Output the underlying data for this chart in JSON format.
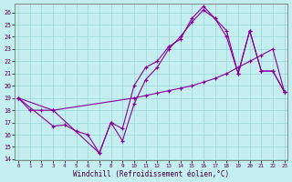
{
  "xlabel": "Windchill (Refroidissement éolien,°C)",
  "background_color": "#c5eef0",
  "grid_color": "#a0d8dc",
  "line_color": "#880099",
  "xlim_min": -0.3,
  "xlim_max": 23.3,
  "ylim_min": 13.9,
  "ylim_max": 26.7,
  "yticks": [
    14,
    15,
    16,
    17,
    18,
    19,
    20,
    21,
    22,
    23,
    24,
    25,
    26
  ],
  "xticks": [
    0,
    1,
    2,
    3,
    4,
    5,
    6,
    7,
    8,
    9,
    10,
    11,
    12,
    13,
    14,
    15,
    16,
    17,
    18,
    19,
    20,
    21,
    22,
    23
  ],
  "line1_x": [
    0,
    1,
    2,
    3,
    10,
    11,
    12,
    13,
    14,
    15,
    16,
    17,
    18,
    19,
    20,
    21,
    22,
    23
  ],
  "line1_y": [
    19,
    18,
    18,
    18,
    19,
    19.2,
    19.4,
    19.6,
    19.8,
    20.0,
    20.3,
    20.6,
    21.0,
    21.5,
    22.0,
    22.5,
    23.0,
    19.5
  ],
  "line2_x": [
    0,
    3,
    4,
    5,
    6,
    7,
    8,
    9,
    10,
    11,
    12,
    13,
    14,
    15,
    16,
    17,
    18,
    19,
    20,
    21,
    22,
    23
  ],
  "line2_y": [
    19,
    16.7,
    16.8,
    16.3,
    16.0,
    14.5,
    17.0,
    16.5,
    20.0,
    21.5,
    22.0,
    23.2,
    23.8,
    25.5,
    26.5,
    25.5,
    24.0,
    21.0,
    24.5,
    21.2,
    21.2,
    19.5
  ],
  "line3_x": [
    0,
    3,
    7,
    8,
    9,
    10,
    11,
    12,
    13,
    14,
    15,
    16,
    17,
    18,
    19,
    20,
    21,
    22,
    23
  ],
  "line3_y": [
    19,
    18,
    14.5,
    17.0,
    15.5,
    18.5,
    20.5,
    21.5,
    23.0,
    24.0,
    25.2,
    26.2,
    25.5,
    24.5,
    21.0,
    24.5,
    21.2,
    21.2,
    19.5
  ]
}
